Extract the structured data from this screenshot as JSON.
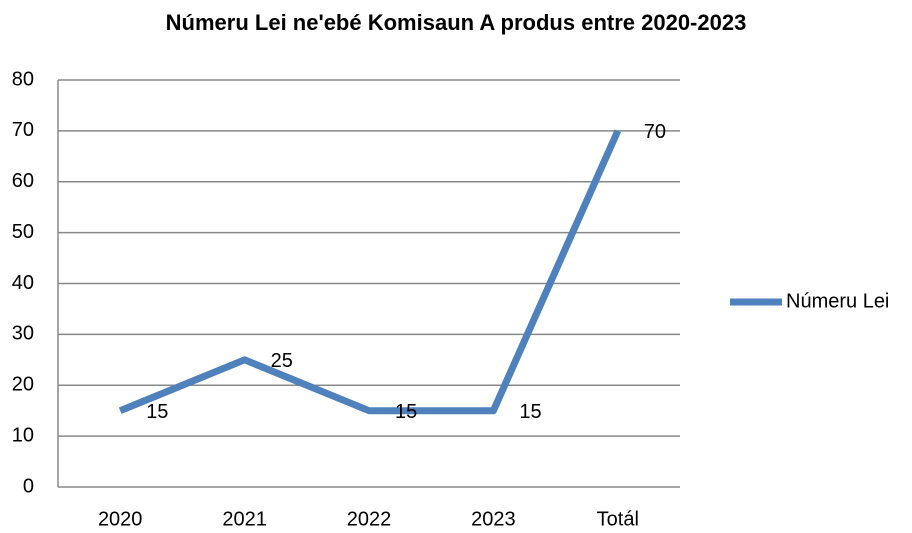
{
  "chart_data": {
    "type": "line",
    "title": "Númeru Lei ne'ebé Komisaun A produs entre 2020-2023",
    "categories": [
      "2020",
      "2021",
      "2022",
      "2023",
      "Totál"
    ],
    "series": [
      {
        "name": "Númeru Lei",
        "color": "#4f81bd",
        "values": [
          15,
          25,
          15,
          15,
          70
        ]
      }
    ],
    "ylim": [
      0,
      80
    ],
    "yticks": [
      0,
      10,
      20,
      30,
      40,
      50,
      60,
      70,
      80
    ],
    "grid": true,
    "legend": "right"
  }
}
